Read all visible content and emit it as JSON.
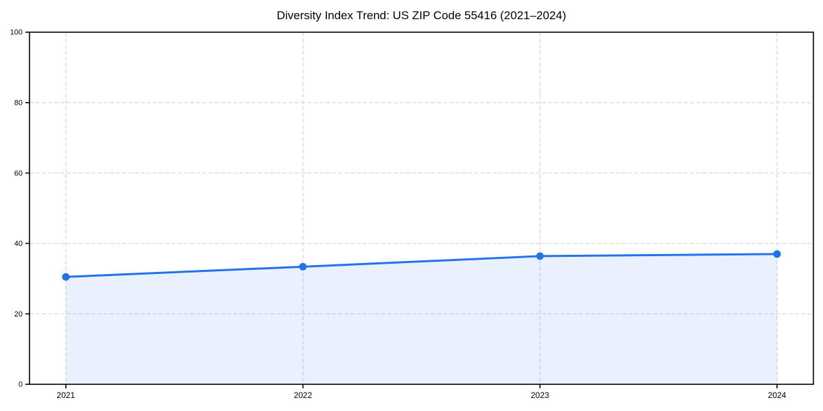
{
  "chart_data": {
    "type": "area",
    "title": "Diversity Index Trend: US ZIP Code 55416 (2021–2024)",
    "categories": [
      "2021",
      "2022",
      "2023",
      "2024"
    ],
    "series": [
      {
        "name": "Diversity Index",
        "values": [
          30.5,
          33.4,
          36.4,
          37.0
        ]
      }
    ],
    "xlabel": "",
    "ylabel": "",
    "ylim": [
      0,
      100
    ],
    "y_ticks": [
      0,
      20,
      40,
      60,
      80,
      100
    ],
    "grid": true,
    "grid_style": "dashed",
    "legend": false,
    "marker": "circle",
    "colors": {
      "line": "#2273eb",
      "fill": "#2273eb",
      "fill_opacity": "0.1",
      "grid": "#dcdcdc",
      "spine": "#000000",
      "text": "#000000",
      "background": "#ffffff"
    }
  }
}
